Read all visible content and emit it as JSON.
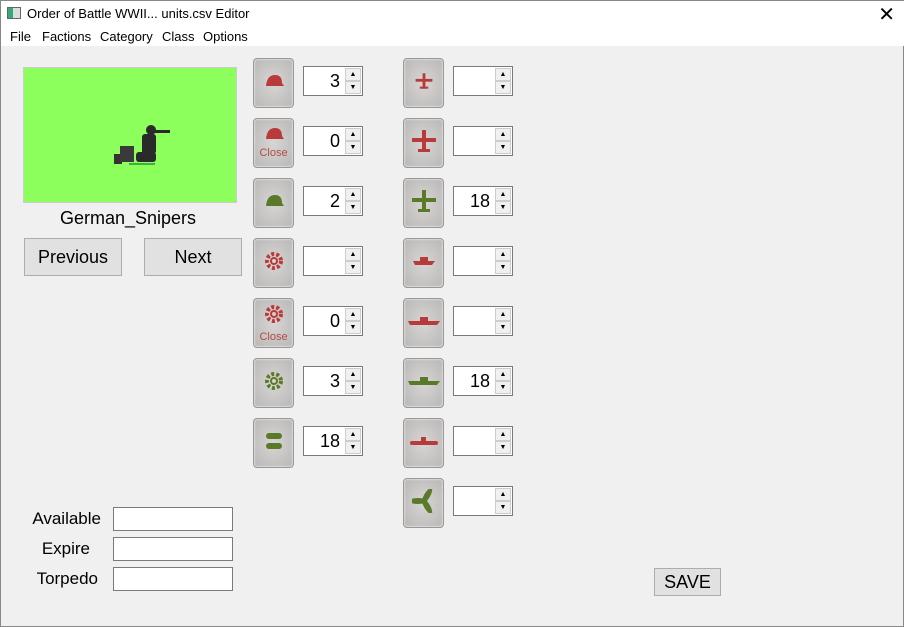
{
  "window": {
    "title": "Order of Battle WWII... units.csv Editor",
    "close": "✕"
  },
  "menu": [
    "File",
    "Factions",
    "Category",
    "Class",
    "Options"
  ],
  "unit": {
    "name": "German_Snipers"
  },
  "nav": {
    "previous": "Previous",
    "next": "Next"
  },
  "left_column": [
    {
      "icon": "helmet-red-icon",
      "value": "3",
      "label": ""
    },
    {
      "icon": "helmet-red-close-icon",
      "value": "0",
      "label": "Close"
    },
    {
      "icon": "helmet-green-icon",
      "value": "2",
      "label": ""
    },
    {
      "icon": "gear-red-icon",
      "value": "",
      "label": ""
    },
    {
      "icon": "gear-red-close-icon",
      "value": "0",
      "label": "Close"
    },
    {
      "icon": "gear-green-icon",
      "value": "3",
      "label": ""
    },
    {
      "icon": "bombs-green-icon",
      "value": "18",
      "label": ""
    }
  ],
  "right_column": [
    {
      "icon": "plane-small-red-icon",
      "value": ""
    },
    {
      "icon": "plane-red-icon",
      "value": ""
    },
    {
      "icon": "plane-green-icon",
      "value": "18"
    },
    {
      "icon": "ship-small-red-icon",
      "value": ""
    },
    {
      "icon": "ship-red-icon",
      "value": ""
    },
    {
      "icon": "ship-green-icon",
      "value": "18"
    },
    {
      "icon": "submarine-red-icon",
      "value": ""
    },
    {
      "icon": "propeller-green-icon",
      "value": ""
    }
  ],
  "fields": [
    {
      "label": "Available",
      "value": ""
    },
    {
      "label": "Expire",
      "value": ""
    },
    {
      "label": "Torpedo",
      "value": ""
    }
  ],
  "save": "SAVE",
  "colors": {
    "red": "#b83a3a",
    "green": "#5a7a2a",
    "picture_bg": "#8cff5c"
  }
}
